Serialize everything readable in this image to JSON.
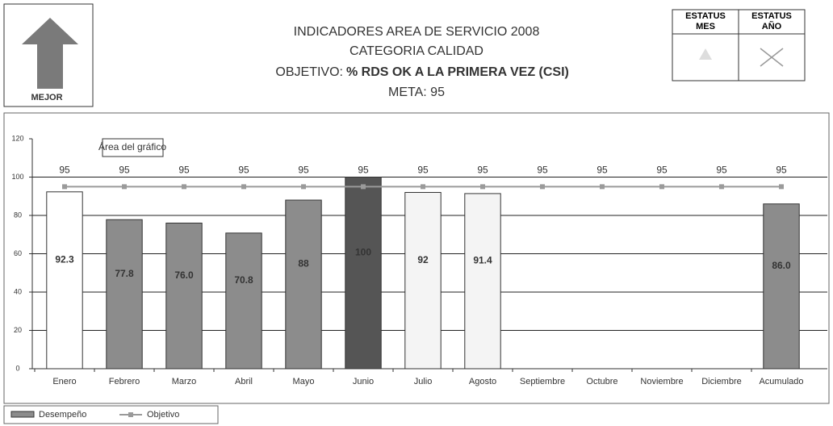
{
  "header": {
    "badge": "MEJOR",
    "status_month": "ESTATUS MES",
    "status_year": "ESTATUS AÑO"
  },
  "chart_data": {
    "type": "bar",
    "title": "INDICADORES AREA DE SERVICIO 2008",
    "subtitle": "CATEGORIA CALIDAD",
    "objective_label": "OBJETIVO:",
    "objective": "% RDS OK A LA PRIMERA VEZ (CSI)",
    "goal": "META: 95",
    "annotation": "Área del gráfico",
    "categories": [
      "Enero",
      "Febrero",
      "Marzo",
      "Abril",
      "Mayo",
      "Junio",
      "Julio",
      "Agosto",
      "Septiembre",
      "Octubre",
      "Noviembre",
      "Diciembre",
      "Acumulado"
    ],
    "series": [
      {
        "name": "Desempeño",
        "colors": [
          "#ffffff",
          "#8c8c8c",
          "#8c8c8c",
          "#8c8c8c",
          "#8c8c8c",
          "#555555",
          "#f4f4f4",
          "#f4f4f4",
          null,
          null,
          null,
          null,
          "#8c8c8c"
        ],
        "values": [
          92.3,
          77.8,
          76.0,
          70.8,
          88,
          100,
          92,
          91.4,
          null,
          null,
          null,
          null,
          86.0
        ],
        "value_labels": [
          "92.3",
          "77.8",
          "76.0",
          "70.8",
          "88",
          "100",
          "92",
          "91.4",
          null,
          null,
          null,
          null,
          "86.0"
        ]
      },
      {
        "name": "Objetivo",
        "color": "#9a9a9a",
        "values": [
          95,
          95,
          95,
          95,
          95,
          95,
          95,
          95,
          95,
          95,
          95,
          95,
          95
        ]
      }
    ],
    "ylim": [
      0,
      120
    ],
    "yticks": [
      0,
      20,
      40,
      60,
      80,
      100,
      120
    ],
    "grid": true
  }
}
